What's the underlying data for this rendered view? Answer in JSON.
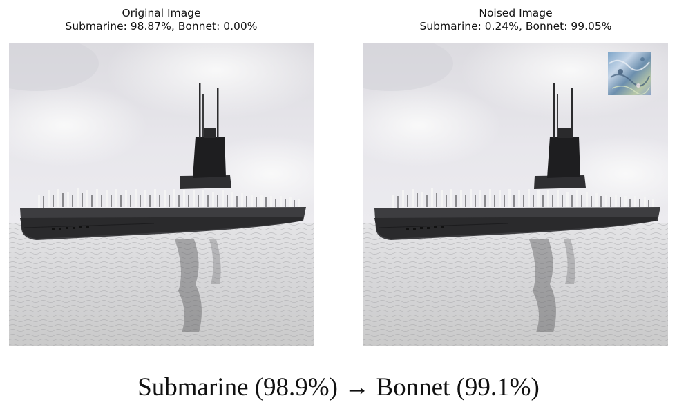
{
  "panels": [
    {
      "title": "Original Image",
      "scores": "Submarine: 98.87%, Bonnet: 0.00%"
    },
    {
      "title": "Noised Image",
      "scores": "Submarine: 0.24%, Bonnet: 99.05%"
    }
  ],
  "caption": "Submarine (98.9%) → Bonnet (99.1%)"
}
